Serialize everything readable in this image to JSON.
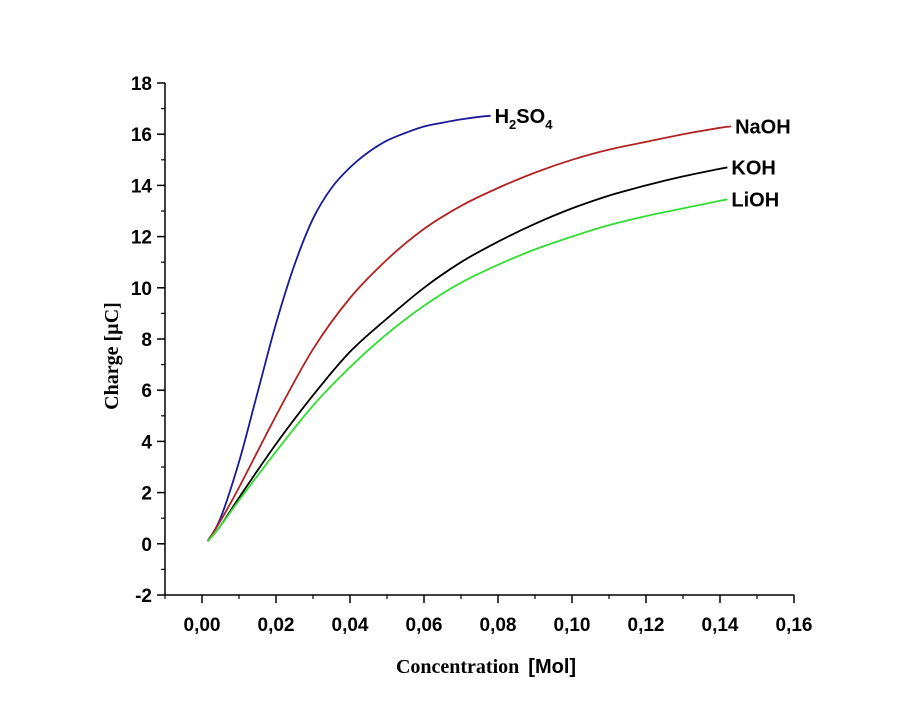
{
  "chart_data": {
    "type": "line",
    "xlabel_prefix": "Concentration",
    "xlabel_unit": "[Mol]",
    "ylabel": "Charge [µC]",
    "xlim": [
      -0.01,
      0.16
    ],
    "ylim": [
      -2,
      18
    ],
    "x_ticks": [
      0.0,
      0.02,
      0.04,
      0.06,
      0.08,
      0.1,
      0.12,
      0.14,
      0.16
    ],
    "x_tick_labels": [
      "0,00",
      "0,02",
      "0,04",
      "0,06",
      "0,08",
      "0,10",
      "0,12",
      "0,14",
      "0,16"
    ],
    "y_ticks": [
      -2,
      0,
      2,
      4,
      6,
      8,
      10,
      12,
      14,
      16,
      18
    ],
    "y_tick_labels": [
      "-2",
      "0",
      "2",
      "4",
      "6",
      "8",
      "10",
      "12",
      "14",
      "16",
      "18"
    ],
    "grid": false,
    "series": [
      {
        "name": "H2SO4",
        "label_main": "H",
        "label_sub1": "2",
        "label_mid": "SO",
        "label_sub2": "4",
        "color": "#1a1a99",
        "x": [
          0.0015,
          0.005,
          0.01,
          0.015,
          0.02,
          0.025,
          0.03,
          0.035,
          0.04,
          0.045,
          0.05,
          0.055,
          0.06,
          0.065,
          0.07,
          0.075,
          0.078
        ],
        "y": [
          0.1,
          1.0,
          3.2,
          5.9,
          8.6,
          10.9,
          12.7,
          13.9,
          14.7,
          15.3,
          15.75,
          16.05,
          16.3,
          16.45,
          16.58,
          16.68,
          16.72
        ]
      },
      {
        "name": "NaOH",
        "color": "#b22222",
        "x": [
          0.0015,
          0.005,
          0.01,
          0.02,
          0.03,
          0.04,
          0.05,
          0.06,
          0.07,
          0.08,
          0.09,
          0.1,
          0.11,
          0.12,
          0.13,
          0.14,
          0.143
        ],
        "y": [
          0.1,
          0.9,
          2.2,
          5.0,
          7.6,
          9.6,
          11.1,
          12.3,
          13.2,
          13.9,
          14.5,
          15.0,
          15.4,
          15.7,
          16.0,
          16.25,
          16.3
        ]
      },
      {
        "name": "KOH",
        "color": "#000000",
        "x": [
          0.0015,
          0.005,
          0.01,
          0.02,
          0.03,
          0.04,
          0.05,
          0.06,
          0.07,
          0.08,
          0.09,
          0.1,
          0.11,
          0.12,
          0.13,
          0.14,
          0.142
        ],
        "y": [
          0.1,
          0.7,
          1.8,
          3.9,
          5.8,
          7.5,
          8.8,
          10.0,
          11.0,
          11.8,
          12.5,
          13.1,
          13.6,
          14.0,
          14.35,
          14.65,
          14.7
        ]
      },
      {
        "name": "LiOH",
        "color": "#33dd33",
        "x": [
          0.0015,
          0.005,
          0.01,
          0.02,
          0.03,
          0.04,
          0.05,
          0.06,
          0.07,
          0.08,
          0.09,
          0.1,
          0.11,
          0.12,
          0.13,
          0.14,
          0.142
        ],
        "y": [
          0.1,
          0.7,
          1.7,
          3.6,
          5.4,
          6.9,
          8.2,
          9.3,
          10.2,
          10.9,
          11.5,
          12.0,
          12.45,
          12.8,
          13.1,
          13.4,
          13.45
        ]
      }
    ]
  }
}
